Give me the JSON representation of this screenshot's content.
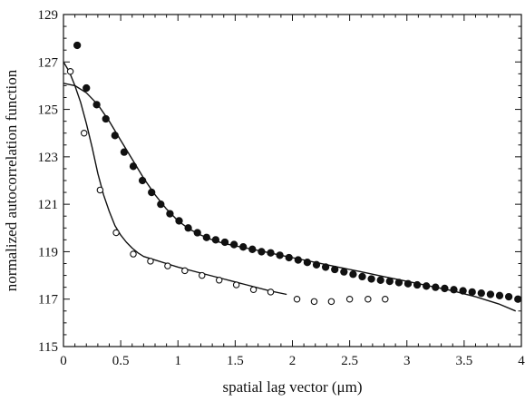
{
  "chart_data": {
    "type": "scatter",
    "title": "",
    "xlabel": "spatial lag vector (μm)",
    "ylabel": "normalized autocorrelation function",
    "xlim": [
      0,
      4
    ],
    "ylim": [
      115,
      129
    ],
    "x_ticks": [
      0,
      0.5,
      1,
      1.5,
      2,
      2.5,
      3,
      3.5,
      4
    ],
    "x_tick_labels": [
      "0",
      "0.5",
      "1",
      "1.5",
      "2",
      "2.5",
      "3",
      "3.5",
      "4"
    ],
    "y_ticks": [
      115,
      117,
      119,
      121,
      123,
      125,
      127,
      129
    ],
    "y_tick_labels": [
      "115",
      "117",
      "119",
      "121",
      "123",
      "125",
      "127",
      "129"
    ],
    "grid": false,
    "legend": false,
    "colors": {
      "marker": "#111111",
      "line": "#111111",
      "open_fill": "#ffffff"
    },
    "series": [
      {
        "kind": "points-filled",
        "x": [
          0.12,
          0.2,
          0.29,
          0.37,
          0.45,
          0.53,
          0.61,
          0.69,
          0.77,
          0.85,
          0.93,
          1.01,
          1.09,
          1.17,
          1.25,
          1.33,
          1.41,
          1.49,
          1.57,
          1.65,
          1.73,
          1.81,
          1.89,
          1.97,
          2.05,
          2.13,
          2.21,
          2.29,
          2.37,
          2.45,
          2.53,
          2.61,
          2.69,
          2.77,
          2.85,
          2.93,
          3.01,
          3.09,
          3.17,
          3.25,
          3.33,
          3.41,
          3.49,
          3.57,
          3.65,
          3.73,
          3.81,
          3.89,
          3.97
        ],
        "y": [
          127.7,
          125.9,
          125.2,
          124.6,
          123.9,
          123.2,
          122.6,
          122.0,
          121.5,
          121.0,
          120.6,
          120.3,
          120.0,
          119.8,
          119.6,
          119.5,
          119.4,
          119.3,
          119.2,
          119.1,
          119.0,
          118.95,
          118.85,
          118.75,
          118.65,
          118.55,
          118.45,
          118.35,
          118.25,
          118.15,
          118.05,
          117.95,
          117.85,
          117.8,
          117.75,
          117.7,
          117.65,
          117.6,
          117.55,
          117.5,
          117.45,
          117.4,
          117.35,
          117.3,
          117.25,
          117.2,
          117.15,
          117.1,
          117.0
        ]
      },
      {
        "kind": "points-open",
        "x": [
          0.06,
          0.18,
          0.32,
          0.46,
          0.61,
          0.76,
          0.91,
          1.06,
          1.21,
          1.36,
          1.51,
          1.66,
          1.81,
          2.04,
          2.19,
          2.34,
          2.5,
          2.66,
          2.81
        ],
        "y": [
          126.6,
          124.0,
          121.6,
          119.8,
          118.9,
          118.6,
          118.4,
          118.2,
          118.0,
          117.8,
          117.6,
          117.4,
          117.3,
          117.0,
          116.9,
          116.9,
          117.0,
          117.0,
          117.0
        ]
      },
      {
        "kind": "line",
        "x": [
          0,
          0.1,
          0.2,
          0.3,
          0.4,
          0.5,
          0.6,
          0.7,
          0.8,
          0.9,
          1.0,
          1.1,
          1.2,
          1.3,
          1.4,
          1.5,
          1.6,
          1.7,
          1.8,
          1.9,
          2.0,
          2.2,
          2.4,
          2.6,
          2.8,
          3.0,
          3.2,
          3.4,
          3.6,
          3.8,
          3.95
        ],
        "y": [
          126.1,
          126.0,
          125.7,
          125.2,
          124.5,
          123.7,
          122.9,
          122.1,
          121.4,
          120.8,
          120.3,
          119.95,
          119.7,
          119.5,
          119.35,
          119.25,
          119.15,
          119.05,
          118.95,
          118.85,
          118.75,
          118.55,
          118.35,
          118.15,
          117.95,
          117.75,
          117.55,
          117.35,
          117.1,
          116.8,
          116.5
        ]
      },
      {
        "kind": "line",
        "x": [
          0,
          0.05,
          0.1,
          0.15,
          0.2,
          0.25,
          0.3,
          0.35,
          0.4,
          0.45,
          0.5,
          0.55,
          0.6,
          0.65,
          0.7,
          0.8,
          0.9,
          1.0,
          1.2,
          1.4,
          1.6,
          1.8,
          1.95
        ],
        "y": [
          127.0,
          126.6,
          126.0,
          125.3,
          124.4,
          123.4,
          122.3,
          121.4,
          120.7,
          120.1,
          119.7,
          119.4,
          119.15,
          118.95,
          118.8,
          118.65,
          118.5,
          118.35,
          118.1,
          117.85,
          117.6,
          117.35,
          117.2
        ]
      }
    ]
  }
}
